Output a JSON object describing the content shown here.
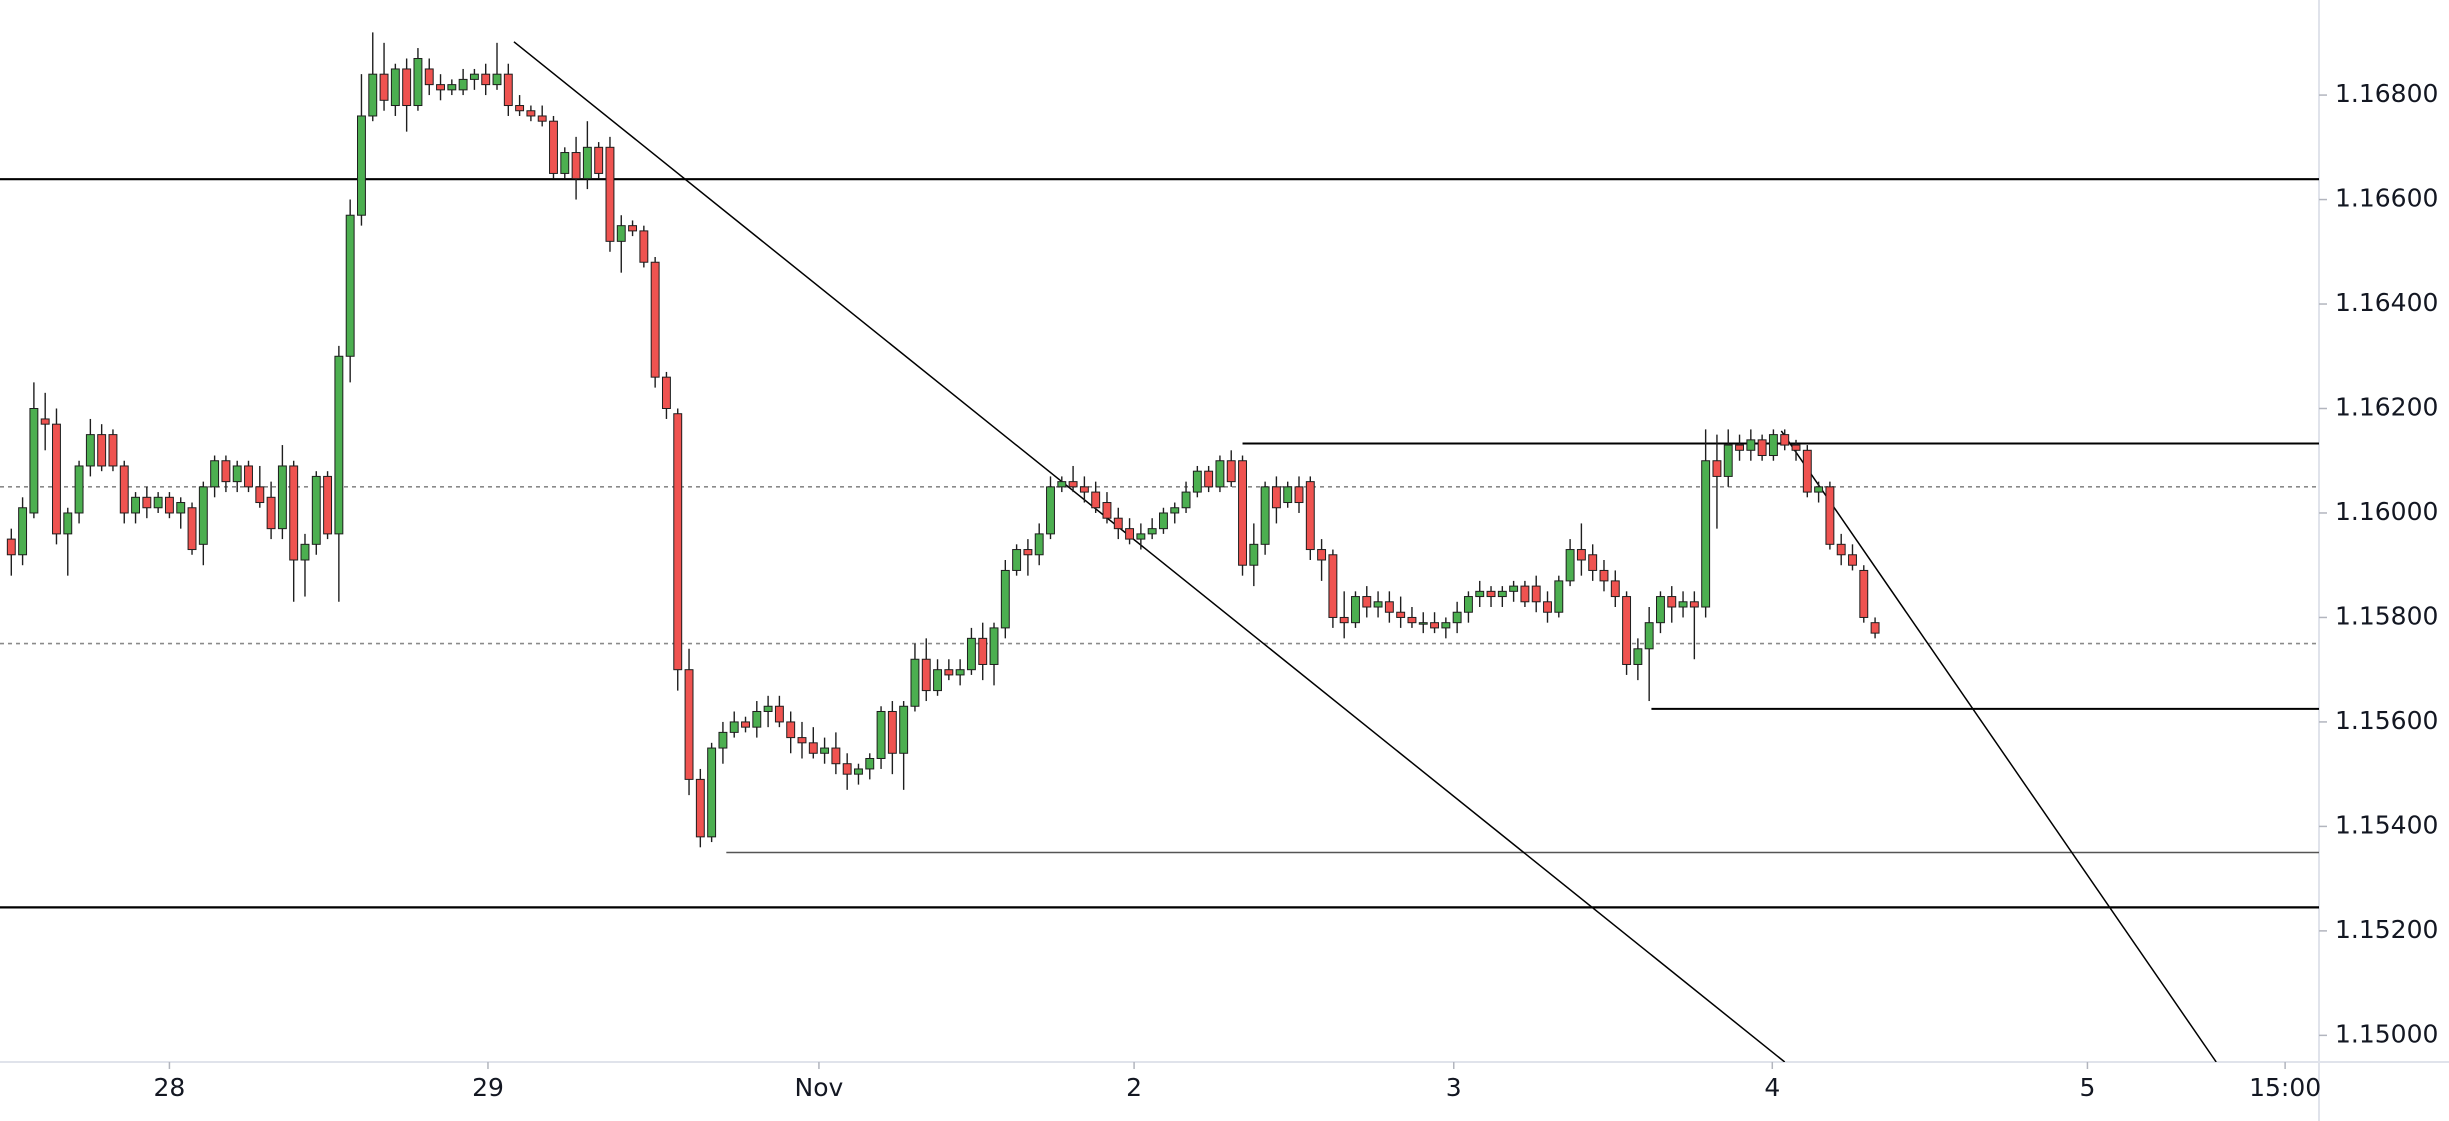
{
  "chart_data": {
    "type": "candlestick",
    "up_color": "#4caf50",
    "down_color": "#ef5350",
    "outline_color": "#1e1e1e",
    "x": [
      0,
      1,
      2,
      3,
      4,
      5,
      6,
      7,
      8,
      9,
      10,
      11,
      12,
      13,
      14,
      15,
      16,
      17,
      18,
      19,
      20,
      21,
      22,
      23,
      24,
      25,
      26,
      27,
      28,
      29,
      30,
      31,
      32,
      33,
      34,
      35,
      36,
      37,
      38,
      39,
      40,
      41,
      42,
      43,
      44,
      45,
      46,
      47,
      48,
      49,
      50,
      51,
      52,
      53,
      54,
      55,
      56,
      57,
      58,
      59,
      60,
      61,
      62,
      63,
      64,
      65,
      66,
      67,
      68,
      69,
      70,
      71,
      72,
      73,
      74,
      75,
      76,
      77,
      78,
      79,
      80,
      81,
      82,
      83,
      84,
      85,
      86,
      87,
      88,
      89,
      90,
      91,
      92,
      93,
      94,
      95,
      96,
      97,
      98,
      99,
      100,
      101,
      102,
      103,
      104,
      105,
      106,
      107,
      108,
      109,
      110,
      111,
      112,
      113,
      114,
      115,
      116,
      117,
      118,
      119,
      120,
      121,
      122,
      123,
      124,
      125,
      126,
      127,
      128,
      129,
      130,
      131,
      132,
      133,
      134,
      135,
      136,
      137,
      138,
      139,
      140,
      141,
      142,
      143,
      144,
      145,
      146,
      147,
      148,
      149,
      150,
      151,
      152,
      153,
      154,
      155,
      156,
      157,
      158,
      159,
      160,
      161,
      162,
      163,
      164,
      165
    ],
    "open": [
      1.1595,
      1.1592,
      1.16,
      1.1618,
      1.1617,
      1.1596,
      1.16,
      1.1609,
      1.1615,
      1.1615,
      1.1609,
      1.16,
      1.1603,
      1.1601,
      1.1603,
      1.16,
      1.1601,
      1.1594,
      1.1605,
      1.161,
      1.1606,
      1.1609,
      1.1605,
      1.1603,
      1.1597,
      1.1609,
      1.1591,
      1.1594,
      1.1607,
      1.1596,
      1.163,
      1.1657,
      1.1676,
      1.1684,
      1.1678,
      1.1685,
      1.1678,
      1.1685,
      1.1682,
      1.1681,
      1.1681,
      1.1683,
      1.1684,
      1.1682,
      1.1684,
      1.1678,
      1.1677,
      1.1676,
      1.1675,
      1.1665,
      1.1669,
      1.1664,
      1.167,
      1.167,
      1.1652,
      1.1655,
      1.1654,
      1.1648,
      1.1626,
      1.1619,
      1.157,
      1.1549,
      1.1538,
      1.1555,
      1.1558,
      1.156,
      1.1559,
      1.1562,
      1.1563,
      1.156,
      1.1557,
      1.1556,
      1.1554,
      1.1555,
      1.1552,
      1.155,
      1.1551,
      1.1553,
      1.1562,
      1.1554,
      1.1563,
      1.1572,
      1.1566,
      1.157,
      1.1569,
      1.157,
      1.1576,
      1.1571,
      1.1578,
      1.1589,
      1.1593,
      1.1592,
      1.1596,
      1.1605,
      1.1606,
      1.1605,
      1.1604,
      1.1602,
      1.1599,
      1.1597,
      1.1595,
      1.1596,
      1.1597,
      1.16,
      1.1601,
      1.1604,
      1.1608,
      1.1605,
      1.161,
      1.161,
      1.159,
      1.1594,
      1.1605,
      1.1602,
      1.1605,
      1.1606,
      1.1593,
      1.1592,
      1.158,
      1.1579,
      1.1584,
      1.1582,
      1.1583,
      1.1581,
      1.158,
      1.1579,
      1.1579,
      1.1578,
      1.1579,
      1.1581,
      1.1584,
      1.1585,
      1.1584,
      1.1585,
      1.1586,
      1.1586,
      1.1583,
      1.1581,
      1.1587,
      1.1593,
      1.1592,
      1.1589,
      1.1587,
      1.1584,
      1.1571,
      1.1574,
      1.1579,
      1.1584,
      1.1582,
      1.1583,
      1.1582,
      1.161,
      1.1607,
      1.1613,
      1.1612,
      1.1614,
      1.1611,
      1.1615,
      1.1613,
      1.1612,
      1.1604,
      1.1605,
      1.1594,
      1.1592,
      1.1589,
      1.1579
    ],
    "high": [
      1.1597,
      1.1603,
      1.1625,
      1.1623,
      1.162,
      1.1601,
      1.161,
      1.1618,
      1.1617,
      1.1616,
      1.161,
      1.1604,
      1.1605,
      1.1604,
      1.1604,
      1.1603,
      1.1602,
      1.1606,
      1.1611,
      1.1611,
      1.161,
      1.161,
      1.1609,
      1.1606,
      1.1613,
      1.161,
      1.1596,
      1.1608,
      1.1608,
      1.1632,
      1.166,
      1.1684,
      1.1692,
      1.169,
      1.1686,
      1.1687,
      1.1689,
      1.1687,
      1.1684,
      1.1683,
      1.1685,
      1.1685,
      1.1686,
      1.169,
      1.1686,
      1.168,
      1.1678,
      1.1678,
      1.1676,
      1.167,
      1.1672,
      1.1675,
      1.1671,
      1.1672,
      1.1657,
      1.1656,
      1.1655,
      1.1649,
      1.1627,
      1.162,
      1.1574,
      1.1551,
      1.1556,
      1.156,
      1.1562,
      1.1561,
      1.1564,
      1.1565,
      1.1565,
      1.1562,
      1.156,
      1.1559,
      1.1557,
      1.1558,
      1.1554,
      1.1552,
      1.1554,
      1.1563,
      1.1564,
      1.1564,
      1.1575,
      1.1576,
      1.1572,
      1.1572,
      1.1572,
      1.1578,
      1.1579,
      1.1579,
      1.1591,
      1.1594,
      1.1595,
      1.1598,
      1.1607,
      1.1607,
      1.1609,
      1.1607,
      1.1606,
      1.1604,
      1.1601,
      1.1599,
      1.1598,
      1.1599,
      1.1601,
      1.1602,
      1.1606,
      1.1609,
      1.1609,
      1.1611,
      1.1612,
      1.1611,
      1.1598,
      1.1606,
      1.1607,
      1.1606,
      1.1607,
      1.1607,
      1.1595,
      1.1593,
      1.1585,
      1.1585,
      1.1586,
      1.1585,
      1.1585,
      1.1584,
      1.1582,
      1.1581,
      1.1581,
      1.158,
      1.1583,
      1.1585,
      1.1587,
      1.1586,
      1.1586,
      1.1587,
      1.1587,
      1.1588,
      1.1585,
      1.1588,
      1.1595,
      1.1598,
      1.1594,
      1.1591,
      1.1589,
      1.1585,
      1.1576,
      1.1582,
      1.1585,
      1.1586,
      1.1585,
      1.1585,
      1.1616,
      1.1615,
      1.1616,
      1.1615,
      1.1616,
      1.1615,
      1.1616,
      1.1616,
      1.1614,
      1.1613,
      1.1606,
      1.1606,
      1.1596,
      1.1594,
      1.159,
      1.158
    ],
    "low": [
      1.1588,
      1.159,
      1.1599,
      1.1612,
      1.1594,
      1.1588,
      1.1598,
      1.1607,
      1.1608,
      1.1608,
      1.1598,
      1.1598,
      1.1599,
      1.16,
      1.1599,
      1.1597,
      1.1592,
      1.159,
      1.1603,
      1.1604,
      1.1604,
      1.1604,
      1.1601,
      1.1595,
      1.1595,
      1.1583,
      1.1584,
      1.1592,
      1.1595,
      1.1583,
      1.1625,
      1.1655,
      1.1675,
      1.1677,
      1.1676,
      1.1673,
      1.1677,
      1.168,
      1.1679,
      1.168,
      1.168,
      1.1681,
      1.168,
      1.1681,
      1.1676,
      1.1676,
      1.1675,
      1.1674,
      1.1664,
      1.1664,
      1.166,
      1.1662,
      1.1664,
      1.165,
      1.1646,
      1.1653,
      1.1647,
      1.1624,
      1.1618,
      1.1566,
      1.1546,
      1.1536,
      1.1537,
      1.1552,
      1.1557,
      1.1558,
      1.1557,
      1.1559,
      1.1559,
      1.1554,
      1.1553,
      1.1553,
      1.1552,
      1.155,
      1.1547,
      1.1548,
      1.1549,
      1.1551,
      1.155,
      1.1547,
      1.1562,
      1.1564,
      1.1565,
      1.1568,
      1.1567,
      1.1569,
      1.1568,
      1.1567,
      1.1576,
      1.1588,
      1.1588,
      1.159,
      1.1595,
      1.1604,
      1.1604,
      1.1602,
      1.16,
      1.1598,
      1.1595,
      1.1594,
      1.1593,
      1.1595,
      1.1596,
      1.1598,
      1.16,
      1.1603,
      1.1604,
      1.1604,
      1.1605,
      1.1588,
      1.1586,
      1.1592,
      1.1598,
      1.1601,
      1.16,
      1.1591,
      1.1587,
      1.1578,
      1.1576,
      1.1578,
      1.158,
      1.158,
      1.1579,
      1.1578,
      1.1578,
      1.1577,
      1.1577,
      1.1576,
      1.1577,
      1.1579,
      1.1582,
      1.1582,
      1.1582,
      1.1583,
      1.1582,
      1.1581,
      1.1579,
      1.158,
      1.1586,
      1.1588,
      1.1587,
      1.1585,
      1.1582,
      1.1569,
      1.1568,
      1.1564,
      1.1577,
      1.1579,
      1.158,
      1.1572,
      1.158,
      1.1597,
      1.1605,
      1.161,
      1.161,
      1.161,
      1.161,
      1.1612,
      1.161,
      1.1603,
      1.1602,
      1.1593,
      1.159,
      1.1589,
      1.1579,
      1.1576
    ],
    "close": [
      1.1592,
      1.1601,
      1.162,
      1.1617,
      1.1596,
      1.16,
      1.1609,
      1.1615,
      1.1609,
      1.1609,
      1.16,
      1.1603,
      1.1601,
      1.1603,
      1.16,
      1.1602,
      1.1593,
      1.1605,
      1.161,
      1.1606,
      1.1609,
      1.1605,
      1.1602,
      1.1597,
      1.1609,
      1.1591,
      1.1594,
      1.1607,
      1.1596,
      1.163,
      1.1657,
      1.1676,
      1.1684,
      1.1679,
      1.1685,
      1.1678,
      1.1687,
      1.1682,
      1.1681,
      1.1682,
      1.1683,
      1.1684,
      1.1682,
      1.1684,
      1.1678,
      1.1677,
      1.1676,
      1.1675,
      1.1665,
      1.1669,
      1.1664,
      1.167,
      1.1665,
      1.1652,
      1.1655,
      1.1654,
      1.1648,
      1.1626,
      1.162,
      1.157,
      1.1549,
      1.1538,
      1.1555,
      1.1558,
      1.156,
      1.1559,
      1.1562,
      1.1563,
      1.156,
      1.1557,
      1.1556,
      1.1554,
      1.1555,
      1.1552,
      1.155,
      1.1551,
      1.1553,
      1.1562,
      1.1554,
      1.1563,
      1.1572,
      1.1566,
      1.157,
      1.1569,
      1.157,
      1.1576,
      1.1571,
      1.1578,
      1.1589,
      1.1593,
      1.1592,
      1.1596,
      1.1605,
      1.1606,
      1.1605,
      1.1604,
      1.1601,
      1.1599,
      1.1597,
      1.1595,
      1.1596,
      1.1597,
      1.16,
      1.1601,
      1.1604,
      1.1608,
      1.1605,
      1.161,
      1.1606,
      1.159,
      1.1594,
      1.1605,
      1.1601,
      1.1605,
      1.1602,
      1.1593,
      1.1591,
      1.158,
      1.1579,
      1.1584,
      1.1582,
      1.1583,
      1.1581,
      1.158,
      1.1579,
      1.1579,
      1.1578,
      1.1579,
      1.1581,
      1.1584,
      1.1585,
      1.1584,
      1.1585,
      1.1586,
      1.1583,
      1.1583,
      1.1581,
      1.1587,
      1.1593,
      1.1591,
      1.1589,
      1.1587,
      1.1584,
      1.1571,
      1.1574,
      1.1579,
      1.1584,
      1.1582,
      1.1583,
      1.1582,
      1.161,
      1.1607,
      1.1613,
      1.1612,
      1.1614,
      1.1611,
      1.1615,
      1.1613,
      1.1612,
      1.1604,
      1.1605,
      1.1594,
      1.1592,
      1.159,
      1.158,
      1.1577
    ],
    "xlim": [
      -1,
      204.3
    ],
    "xticks": [
      {
        "value": 14,
        "label": "28"
      },
      {
        "value": 42.2,
        "label": "29"
      },
      {
        "value": 71.5,
        "label": "Nov"
      },
      {
        "value": 99.4,
        "label": "2"
      },
      {
        "value": 127.7,
        "label": "3"
      },
      {
        "value": 155.9,
        "label": "4"
      },
      {
        "value": 183.8,
        "label": "5"
      },
      {
        "value": 201.3,
        "label": "15:00"
      }
    ],
    "ylim": [
      1.14949,
      1.16982
    ],
    "yticks": [
      {
        "value": 1.15,
        "label": "1.15000"
      },
      {
        "value": 1.152,
        "label": "1.15200"
      },
      {
        "value": 1.154,
        "label": "1.15400"
      },
      {
        "value": 1.156,
        "label": "1.15600"
      },
      {
        "value": 1.158,
        "label": "1.15800"
      },
      {
        "value": 1.16,
        "label": "1.16000"
      },
      {
        "value": 1.162,
        "label": "1.16200"
      },
      {
        "value": 1.164,
        "label": "1.16400"
      },
      {
        "value": 1.166,
        "label": "1.16600"
      },
      {
        "value": 1.168,
        "label": "1.16800"
      }
    ],
    "horizontal_lines": [
      1.16639,
      1.15245
    ],
    "dashed_lines": [
      1.1605,
      1.1575
    ],
    "rays": [
      {
        "x": 109,
        "y": 1.16133
      },
      {
        "x": 145.2,
        "y": 1.15625
      },
      {
        "x": 63.3,
        "y": 1.1535
      }
    ],
    "trend_lines": [
      {
        "x": [
          44.5,
          157
        ],
        "y": [
          1.16902,
          1.14949
        ]
      },
      {
        "x": [
          156.7,
          195.2
        ],
        "y": [
          1.16157,
          1.14949
        ]
      }
    ]
  }
}
